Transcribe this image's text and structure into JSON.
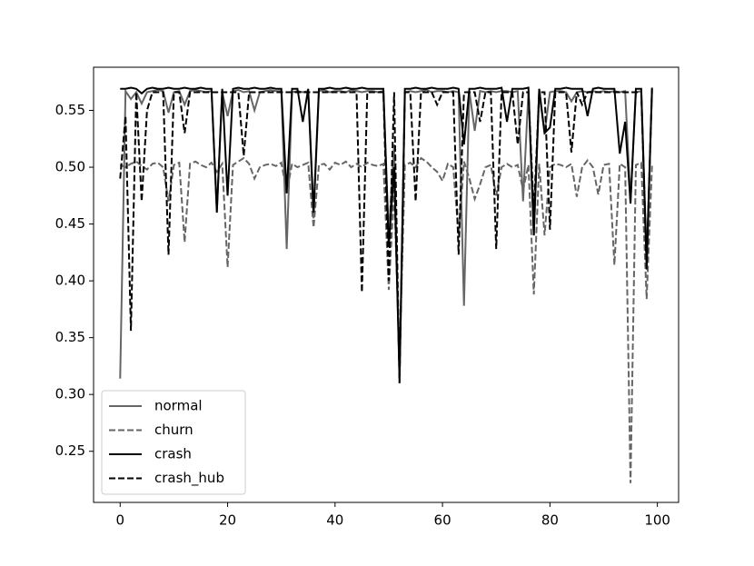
{
  "chart_data": {
    "type": "line",
    "xlim": [
      -4.95,
      103.95
    ],
    "ylim": [
      0.205,
      0.588
    ],
    "xticks": [
      0,
      20,
      40,
      60,
      80,
      100
    ],
    "yticks": [
      0.25,
      {
        "value": 0.3,
        "label": "0.30"
      },
      0.35,
      {
        "value": 0.4,
        "label": "0.40"
      },
      0.45,
      {
        "value": 0.5,
        "label": "0.50"
      },
      0.55
    ],
    "legend": "lower left",
    "x": [
      0,
      1,
      2,
      3,
      4,
      5,
      6,
      7,
      8,
      9,
      10,
      11,
      12,
      13,
      14,
      15,
      16,
      17,
      18,
      19,
      20,
      21,
      22,
      23,
      24,
      25,
      26,
      27,
      28,
      29,
      30,
      31,
      32,
      33,
      34,
      35,
      36,
      37,
      38,
      39,
      40,
      41,
      42,
      43,
      44,
      45,
      46,
      47,
      48,
      49,
      50,
      51,
      52,
      53,
      54,
      55,
      56,
      57,
      58,
      59,
      60,
      61,
      62,
      63,
      64,
      65,
      66,
      67,
      68,
      69,
      70,
      71,
      72,
      73,
      74,
      75,
      76,
      77,
      78,
      79,
      80,
      81,
      82,
      83,
      84,
      85,
      86,
      87,
      88,
      89,
      90,
      91,
      92,
      93,
      94,
      95,
      96,
      97,
      98,
      99
    ],
    "series": [
      {
        "name": "normal",
        "color": "#666666",
        "linestyle": "solid",
        "values": [
          0.314,
          0.567,
          0.56,
          0.566,
          0.556,
          0.566,
          0.567,
          0.568,
          0.567,
          0.548,
          0.566,
          0.567,
          0.555,
          0.567,
          0.568,
          0.567,
          0.566,
          0.567,
          0.462,
          0.566,
          0.545,
          0.567,
          0.568,
          0.566,
          0.567,
          0.55,
          0.566,
          0.567,
          0.568,
          0.567,
          0.567,
          0.428,
          0.566,
          0.567,
          0.566,
          0.567,
          0.455,
          0.567,
          0.568,
          0.566,
          0.567,
          0.567,
          0.566,
          0.568,
          0.567,
          0.566,
          0.567,
          0.567,
          0.566,
          0.567,
          0.44,
          0.52,
          0.31,
          0.566,
          0.567,
          0.566,
          0.567,
          0.568,
          0.566,
          0.567,
          0.567,
          0.566,
          0.567,
          0.566,
          0.378,
          0.567,
          0.532,
          0.567,
          0.566,
          0.567,
          0.566,
          0.567,
          0.567,
          0.566,
          0.567,
          0.47,
          0.567,
          0.44,
          0.566,
          0.53,
          0.566,
          0.567,
          0.567,
          0.566,
          0.558,
          0.566,
          0.567,
          0.566,
          0.567,
          0.566,
          0.567,
          0.566,
          0.567,
          0.566,
          0.567,
          0.47,
          0.566,
          0.567,
          0.42,
          0.567
        ]
      },
      {
        "name": "churn",
        "color": "#666666",
        "linestyle": "dashed",
        "values": [
          0.502,
          0.5,
          0.503,
          0.505,
          0.501,
          0.498,
          0.503,
          0.504,
          0.5,
          0.47,
          0.502,
          0.504,
          0.434,
          0.503,
          0.505,
          0.502,
          0.5,
          0.504,
          0.496,
          0.503,
          0.412,
          0.502,
          0.505,
          0.508,
          0.503,
          0.49,
          0.5,
          0.502,
          0.503,
          0.501,
          0.504,
          0.478,
          0.503,
          0.5,
          0.502,
          0.504,
          0.447,
          0.502,
          0.503,
          0.498,
          0.504,
          0.502,
          0.505,
          0.5,
          0.503,
          0.5,
          0.504,
          0.502,
          0.501,
          0.503,
          0.392,
          0.48,
          0.33,
          0.502,
          0.504,
          0.5,
          0.508,
          0.505,
          0.5,
          0.496,
          0.488,
          0.503,
          0.5,
          0.44,
          0.505,
          0.49,
          0.472,
          0.485,
          0.5,
          0.502,
          0.475,
          0.5,
          0.503,
          0.5,
          0.502,
          0.48,
          0.502,
          0.388,
          0.503,
          0.44,
          0.5,
          0.503,
          0.502,
          0.5,
          0.503,
          0.474,
          0.5,
          0.506,
          0.5,
          0.476,
          0.502,
          0.503,
          0.414,
          0.503,
          0.5,
          0.222,
          0.502,
          0.504,
          0.384,
          0.502
        ]
      },
      {
        "name": "crash",
        "color": "#000000",
        "linestyle": "solid",
        "values": [
          0.569,
          0.569,
          0.57,
          0.569,
          0.565,
          0.569,
          0.57,
          0.569,
          0.569,
          0.57,
          0.569,
          0.569,
          0.57,
          0.569,
          0.569,
          0.57,
          0.569,
          0.569,
          0.46,
          0.569,
          0.475,
          0.569,
          0.57,
          0.569,
          0.569,
          0.57,
          0.569,
          0.569,
          0.57,
          0.569,
          0.569,
          0.477,
          0.569,
          0.569,
          0.54,
          0.569,
          0.46,
          0.569,
          0.569,
          0.57,
          0.569,
          0.569,
          0.57,
          0.569,
          0.569,
          0.57,
          0.569,
          0.569,
          0.569,
          0.569,
          0.43,
          0.5,
          0.315,
          0.569,
          0.569,
          0.57,
          0.569,
          0.569,
          0.57,
          0.569,
          0.569,
          0.569,
          0.57,
          0.569,
          0.52,
          0.569,
          0.569,
          0.57,
          0.569,
          0.569,
          0.569,
          0.57,
          0.54,
          0.569,
          0.569,
          0.569,
          0.57,
          0.44,
          0.569,
          0.53,
          0.535,
          0.569,
          0.569,
          0.57,
          0.569,
          0.569,
          0.569,
          0.545,
          0.569,
          0.57,
          0.569,
          0.569,
          0.569,
          0.512,
          0.54,
          0.468,
          0.569,
          0.569,
          0.413,
          0.569
        ]
      },
      {
        "name": "crash_hub",
        "color": "#000000",
        "linestyle": "dashed",
        "values": [
          0.49,
          0.545,
          0.356,
          0.566,
          0.47,
          0.55,
          0.566,
          0.566,
          0.566,
          0.423,
          0.566,
          0.566,
          0.53,
          0.566,
          0.566,
          0.566,
          0.566,
          0.566,
          0.566,
          0.566,
          0.566,
          0.566,
          0.566,
          0.51,
          0.566,
          0.566,
          0.566,
          0.566,
          0.566,
          0.566,
          0.566,
          0.566,
          0.566,
          0.566,
          0.566,
          0.566,
          0.566,
          0.566,
          0.566,
          0.566,
          0.566,
          0.566,
          0.566,
          0.566,
          0.566,
          0.39,
          0.566,
          0.566,
          0.566,
          0.566,
          0.4,
          0.566,
          0.31,
          0.566,
          0.566,
          0.47,
          0.566,
          0.566,
          0.566,
          0.555,
          0.566,
          0.566,
          0.566,
          0.423,
          0.566,
          0.566,
          0.566,
          0.54,
          0.566,
          0.566,
          0.428,
          0.566,
          0.566,
          0.566,
          0.52,
          0.566,
          0.566,
          0.46,
          0.566,
          0.566,
          0.445,
          0.566,
          0.566,
          0.566,
          0.513,
          0.566,
          0.555,
          0.566,
          0.566,
          0.566,
          0.566,
          0.566,
          0.566,
          0.566,
          0.566,
          0.566,
          0.566,
          0.566,
          0.41,
          0.57
        ]
      }
    ]
  }
}
